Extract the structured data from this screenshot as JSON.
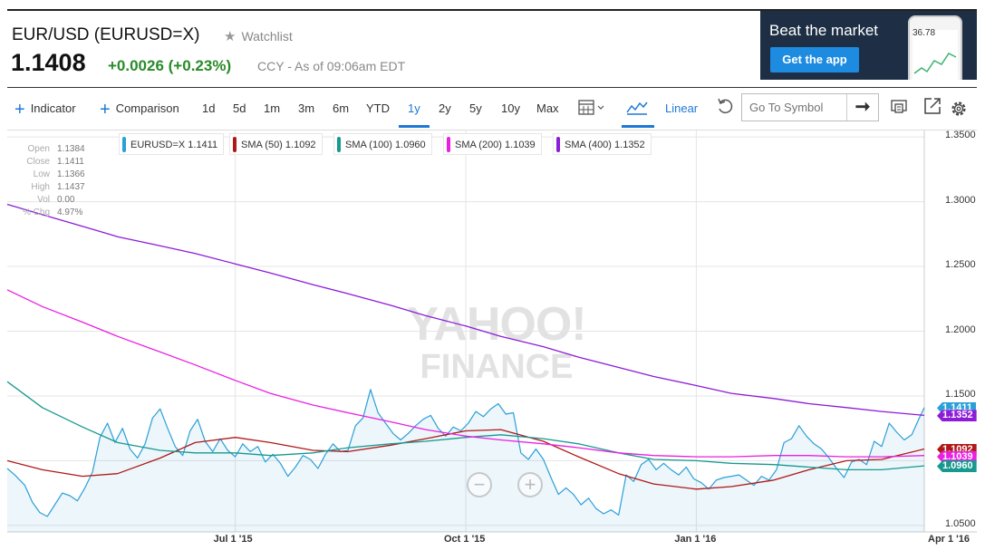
{
  "header": {
    "title": "EUR/USD (EURUSD=X)",
    "watchlist_label": "Watchlist",
    "price": "1.1408",
    "change": "+0.0026 (+0.23%)",
    "as_of": "CCY - As of 09:06am EDT"
  },
  "ad": {
    "headline": "Beat the market",
    "button": "Get the app",
    "phone_value": "36.78"
  },
  "toolbar": {
    "indicator": "Indicator",
    "comparison": "Comparison",
    "periods": [
      "1d",
      "5d",
      "1m",
      "3m",
      "6m",
      "YTD",
      "1y",
      "2y",
      "5y",
      "10y",
      "Max"
    ],
    "active_period": "1y",
    "scale": "Linear",
    "symbol_placeholder": "Go To Symbol"
  },
  "ohlc": [
    {
      "label": "Open",
      "value": "1.1384"
    },
    {
      "label": "Close",
      "value": "1.1411"
    },
    {
      "label": "Low",
      "value": "1.1366"
    },
    {
      "label": "High",
      "value": "1.1437"
    },
    {
      "label": "Vol",
      "value": "0.00"
    },
    {
      "label": "% Chg",
      "value": "4.97%"
    }
  ],
  "legend": [
    {
      "text": "EURUSD=X 1.1411",
      "color": "#2a9fd8"
    },
    {
      "text": "SMA (50) 1.1092",
      "color": "#b01818"
    },
    {
      "text": "SMA (100) 1.0960",
      "color": "#17998f"
    },
    {
      "text": "SMA (200) 1.1039",
      "color": "#ea20e0"
    },
    {
      "text": "SMA (400) 1.1352",
      "color": "#8c1cd8"
    }
  ],
  "watermark": {
    "line1": "YAHOO!",
    "line2": "FINANCE"
  },
  "chart_data": {
    "type": "line",
    "scale": "linear",
    "ylim": [
      1.045,
      1.355
    ],
    "y_ticks": [
      "1.3500",
      "1.3000",
      "1.2500",
      "1.2000",
      "1.1500",
      "1.1000",
      "1.0500"
    ],
    "x_range": [
      "2015-04-01",
      "2016-04-01"
    ],
    "x_ticks": [
      {
        "date": "2015-07-01",
        "label": "Jul 1 '15"
      },
      {
        "date": "2015-10-01",
        "label": "Oct 1 '15"
      },
      {
        "date": "2016-01-01",
        "label": "Jan 1 '16"
      },
      {
        "date": "2016-04-01",
        "label": "Apr 1 '16"
      }
    ],
    "grid": true,
    "last_value_tags": [
      {
        "label": "1.1411",
        "series": "EURUSD=X",
        "color": "#2a9fd8"
      },
      {
        "label": "1.1352",
        "series": "SMA (400)",
        "color": "#8c1cd8"
      },
      {
        "label": "1.1092",
        "series": "SMA (50)",
        "color": "#b01818"
      },
      {
        "label": "1.1039",
        "series": "SMA (200)",
        "color": "#ea20e0"
      },
      {
        "label": "1.0960",
        "series": "SMA (100)",
        "color": "#17998f"
      }
    ],
    "series": [
      {
        "name": "EURUSD=X",
        "color": "#2a9fd8",
        "area": true,
        "points": [
          [
            "2015-04-01",
            1.094
          ],
          [
            "2015-04-04",
            1.089
          ],
          [
            "2015-04-08",
            1.081
          ],
          [
            "2015-04-11",
            1.068
          ],
          [
            "2015-04-14",
            1.06
          ],
          [
            "2015-04-17",
            1.057
          ],
          [
            "2015-04-20",
            1.066
          ],
          [
            "2015-04-23",
            1.075
          ],
          [
            "2015-04-26",
            1.073
          ],
          [
            "2015-04-29",
            1.069
          ],
          [
            "2015-05-02",
            1.079
          ],
          [
            "2015-05-05",
            1.091
          ],
          [
            "2015-05-08",
            1.118
          ],
          [
            "2015-05-11",
            1.129
          ],
          [
            "2015-05-14",
            1.114
          ],
          [
            "2015-05-17",
            1.125
          ],
          [
            "2015-05-20",
            1.109
          ],
          [
            "2015-05-23",
            1.102
          ],
          [
            "2015-05-26",
            1.113
          ],
          [
            "2015-05-29",
            1.133
          ],
          [
            "2015-06-01",
            1.14
          ],
          [
            "2015-06-04",
            1.125
          ],
          [
            "2015-06-07",
            1.111
          ],
          [
            "2015-06-10",
            1.104
          ],
          [
            "2015-06-13",
            1.123
          ],
          [
            "2015-06-16",
            1.132
          ],
          [
            "2015-06-19",
            1.115
          ],
          [
            "2015-06-22",
            1.107
          ],
          [
            "2015-06-25",
            1.117
          ],
          [
            "2015-06-28",
            1.108
          ],
          [
            "2015-07-01",
            1.103
          ],
          [
            "2015-07-04",
            1.113
          ],
          [
            "2015-07-07",
            1.107
          ],
          [
            "2015-07-10",
            1.111
          ],
          [
            "2015-07-13",
            1.099
          ],
          [
            "2015-07-16",
            1.105
          ],
          [
            "2015-07-19",
            1.098
          ],
          [
            "2015-07-22",
            1.088
          ],
          [
            "2015-07-25",
            1.095
          ],
          [
            "2015-07-28",
            1.104
          ],
          [
            "2015-07-31",
            1.101
          ],
          [
            "2015-08-03",
            1.094
          ],
          [
            "2015-08-06",
            1.105
          ],
          [
            "2015-08-09",
            1.113
          ],
          [
            "2015-08-12",
            1.107
          ],
          [
            "2015-08-15",
            1.108
          ],
          [
            "2015-08-18",
            1.127
          ],
          [
            "2015-08-21",
            1.133
          ],
          [
            "2015-08-24",
            1.155
          ],
          [
            "2015-08-27",
            1.137
          ],
          [
            "2015-08-30",
            1.129
          ],
          [
            "2015-09-02",
            1.121
          ],
          [
            "2015-09-05",
            1.116
          ],
          [
            "2015-09-08",
            1.121
          ],
          [
            "2015-09-11",
            1.127
          ],
          [
            "2015-09-14",
            1.132
          ],
          [
            "2015-09-17",
            1.135
          ],
          [
            "2015-09-20",
            1.125
          ],
          [
            "2015-09-23",
            1.119
          ],
          [
            "2015-09-26",
            1.126
          ],
          [
            "2015-09-29",
            1.123
          ],
          [
            "2015-10-02",
            1.129
          ],
          [
            "2015-10-05",
            1.138
          ],
          [
            "2015-10-08",
            1.134
          ],
          [
            "2015-10-11",
            1.14
          ],
          [
            "2015-10-14",
            1.144
          ],
          [
            "2015-10-17",
            1.136
          ],
          [
            "2015-10-20",
            1.137
          ],
          [
            "2015-10-23",
            1.106
          ],
          [
            "2015-10-26",
            1.101
          ],
          [
            "2015-10-29",
            1.109
          ],
          [
            "2015-11-01",
            1.101
          ],
          [
            "2015-11-04",
            1.087
          ],
          [
            "2015-11-07",
            1.074
          ],
          [
            "2015-11-10",
            1.079
          ],
          [
            "2015-11-13",
            1.074
          ],
          [
            "2015-11-16",
            1.066
          ],
          [
            "2015-11-19",
            1.071
          ],
          [
            "2015-11-22",
            1.063
          ],
          [
            "2015-11-25",
            1.059
          ],
          [
            "2015-11-28",
            1.062
          ],
          [
            "2015-12-01",
            1.058
          ],
          [
            "2015-12-04",
            1.089
          ],
          [
            "2015-12-07",
            1.084
          ],
          [
            "2015-12-10",
            1.097
          ],
          [
            "2015-12-13",
            1.101
          ],
          [
            "2015-12-16",
            1.093
          ],
          [
            "2015-12-19",
            1.098
          ],
          [
            "2015-12-22",
            1.093
          ],
          [
            "2015-12-25",
            1.089
          ],
          [
            "2015-12-28",
            1.095
          ],
          [
            "2015-12-31",
            1.086
          ],
          [
            "2016-01-03",
            1.083
          ],
          [
            "2016-01-06",
            1.078
          ],
          [
            "2016-01-09",
            1.085
          ],
          [
            "2016-01-12",
            1.087
          ],
          [
            "2016-01-15",
            1.088
          ],
          [
            "2016-01-18",
            1.089
          ],
          [
            "2016-01-21",
            1.085
          ],
          [
            "2016-01-24",
            1.081
          ],
          [
            "2016-01-27",
            1.088
          ],
          [
            "2016-01-30",
            1.085
          ],
          [
            "2016-02-02",
            1.093
          ],
          [
            "2016-02-05",
            1.114
          ],
          [
            "2016-02-08",
            1.117
          ],
          [
            "2016-02-11",
            1.127
          ],
          [
            "2016-02-14",
            1.119
          ],
          [
            "2016-02-17",
            1.113
          ],
          [
            "2016-02-20",
            1.109
          ],
          [
            "2016-02-23",
            1.102
          ],
          [
            "2016-02-26",
            1.094
          ],
          [
            "2016-02-29",
            1.087
          ],
          [
            "2016-03-03",
            1.099
          ],
          [
            "2016-03-06",
            1.101
          ],
          [
            "2016-03-09",
            1.097
          ],
          [
            "2016-03-12",
            1.115
          ],
          [
            "2016-03-15",
            1.111
          ],
          [
            "2016-03-18",
            1.129
          ],
          [
            "2016-03-21",
            1.122
          ],
          [
            "2016-03-24",
            1.116
          ],
          [
            "2016-03-27",
            1.12
          ],
          [
            "2016-03-30",
            1.133
          ],
          [
            "2016-04-01",
            1.141
          ]
        ]
      },
      {
        "name": "SMA (50)",
        "color": "#b01818",
        "points": [
          [
            "2015-04-01",
            1.1
          ],
          [
            "2015-04-15",
            1.093
          ],
          [
            "2015-05-01",
            1.088
          ],
          [
            "2015-05-15",
            1.09
          ],
          [
            "2015-06-01",
            1.102
          ],
          [
            "2015-06-15",
            1.114
          ],
          [
            "2015-07-01",
            1.118
          ],
          [
            "2015-07-15",
            1.114
          ],
          [
            "2015-08-01",
            1.108
          ],
          [
            "2015-08-15",
            1.107
          ],
          [
            "2015-09-01",
            1.112
          ],
          [
            "2015-09-15",
            1.117
          ],
          [
            "2015-10-01",
            1.123
          ],
          [
            "2015-10-15",
            1.124
          ],
          [
            "2015-11-01",
            1.115
          ],
          [
            "2015-11-15",
            1.103
          ],
          [
            "2015-12-01",
            1.09
          ],
          [
            "2015-12-15",
            1.082
          ],
          [
            "2016-01-01",
            1.078
          ],
          [
            "2016-01-15",
            1.08
          ],
          [
            "2016-02-01",
            1.085
          ],
          [
            "2016-02-15",
            1.093
          ],
          [
            "2016-03-01",
            1.1
          ],
          [
            "2016-03-15",
            1.101
          ],
          [
            "2016-04-01",
            1.109
          ]
        ]
      },
      {
        "name": "SMA (100)",
        "color": "#17998f",
        "points": [
          [
            "2015-04-01",
            1.161
          ],
          [
            "2015-04-15",
            1.141
          ],
          [
            "2015-05-01",
            1.126
          ],
          [
            "2015-05-15",
            1.114
          ],
          [
            "2015-06-01",
            1.108
          ],
          [
            "2015-06-15",
            1.106
          ],
          [
            "2015-07-01",
            1.106
          ],
          [
            "2015-07-15",
            1.104
          ],
          [
            "2015-08-01",
            1.106
          ],
          [
            "2015-08-15",
            1.11
          ],
          [
            "2015-09-01",
            1.113
          ],
          [
            "2015-09-15",
            1.115
          ],
          [
            "2015-10-01",
            1.118
          ],
          [
            "2015-10-15",
            1.12
          ],
          [
            "2015-11-01",
            1.117
          ],
          [
            "2015-11-15",
            1.113
          ],
          [
            "2015-12-01",
            1.106
          ],
          [
            "2015-12-15",
            1.101
          ],
          [
            "2016-01-01",
            1.1
          ],
          [
            "2016-01-15",
            1.098
          ],
          [
            "2016-02-01",
            1.097
          ],
          [
            "2016-02-15",
            1.095
          ],
          [
            "2016-03-01",
            1.093
          ],
          [
            "2016-03-15",
            1.093
          ],
          [
            "2016-04-01",
            1.096
          ]
        ]
      },
      {
        "name": "SMA (200)",
        "color": "#ea20e0",
        "points": [
          [
            "2015-04-01",
            1.232
          ],
          [
            "2015-04-15",
            1.219
          ],
          [
            "2015-05-01",
            1.207
          ],
          [
            "2015-05-15",
            1.196
          ],
          [
            "2015-06-01",
            1.184
          ],
          [
            "2015-06-15",
            1.174
          ],
          [
            "2015-07-01",
            1.162
          ],
          [
            "2015-07-15",
            1.152
          ],
          [
            "2015-08-01",
            1.143
          ],
          [
            "2015-08-15",
            1.137
          ],
          [
            "2015-09-01",
            1.13
          ],
          [
            "2015-09-15",
            1.124
          ],
          [
            "2015-10-01",
            1.119
          ],
          [
            "2015-10-15",
            1.116
          ],
          [
            "2015-11-01",
            1.113
          ],
          [
            "2015-11-15",
            1.11
          ],
          [
            "2015-12-01",
            1.106
          ],
          [
            "2015-12-15",
            1.104
          ],
          [
            "2016-01-01",
            1.103
          ],
          [
            "2016-01-15",
            1.103
          ],
          [
            "2016-02-01",
            1.104
          ],
          [
            "2016-02-15",
            1.104
          ],
          [
            "2016-03-01",
            1.103
          ],
          [
            "2016-03-15",
            1.103
          ],
          [
            "2016-04-01",
            1.104
          ]
        ]
      },
      {
        "name": "SMA (400)",
        "color": "#8c1cd8",
        "points": [
          [
            "2015-04-01",
            1.298
          ],
          [
            "2015-04-15",
            1.29
          ],
          [
            "2015-05-01",
            1.281
          ],
          [
            "2015-05-15",
            1.273
          ],
          [
            "2015-06-01",
            1.266
          ],
          [
            "2015-06-15",
            1.26
          ],
          [
            "2015-07-01",
            1.252
          ],
          [
            "2015-07-15",
            1.245
          ],
          [
            "2015-08-01",
            1.236
          ],
          [
            "2015-08-15",
            1.229
          ],
          [
            "2015-09-01",
            1.22
          ],
          [
            "2015-09-15",
            1.212
          ],
          [
            "2015-10-01",
            1.204
          ],
          [
            "2015-10-15",
            1.196
          ],
          [
            "2015-11-01",
            1.188
          ],
          [
            "2015-11-15",
            1.18
          ],
          [
            "2015-12-01",
            1.172
          ],
          [
            "2015-12-15",
            1.165
          ],
          [
            "2016-01-01",
            1.158
          ],
          [
            "2016-01-15",
            1.152
          ],
          [
            "2016-02-01",
            1.148
          ],
          [
            "2016-02-15",
            1.144
          ],
          [
            "2016-03-01",
            1.141
          ],
          [
            "2016-03-15",
            1.138
          ],
          [
            "2016-04-01",
            1.135
          ]
        ]
      }
    ]
  }
}
